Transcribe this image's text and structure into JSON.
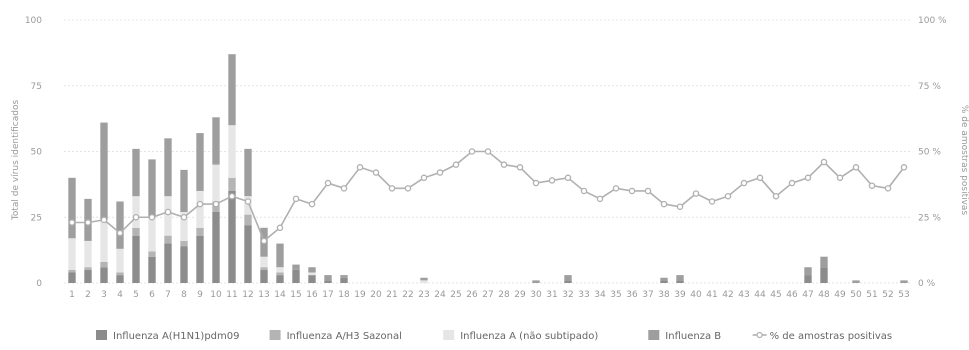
{
  "chart_data": {
    "type": "bar",
    "ylabel": "Total de vírus identificados",
    "y2label": "% de amostras positivas",
    "ylim": [
      0,
      100
    ],
    "y2lim": [
      0,
      100
    ],
    "yticks": [
      "0",
      "25",
      "50",
      "75",
      "100"
    ],
    "y2ticks": [
      "0 %",
      "25 %",
      "50 %",
      "75 %",
      "100 %"
    ],
    "categories": [
      "1",
      "2",
      "3",
      "4",
      "5",
      "6",
      "7",
      "8",
      "9",
      "10",
      "11",
      "12",
      "13",
      "14",
      "15",
      "16",
      "17",
      "18",
      "19",
      "20",
      "21",
      "22",
      "23",
      "24",
      "25",
      "26",
      "27",
      "28",
      "29",
      "30",
      "31",
      "32",
      "33",
      "34",
      "35",
      "36",
      "37",
      "38",
      "39",
      "40",
      "41",
      "42",
      "43",
      "44",
      "45",
      "46",
      "47",
      "48",
      "49",
      "50",
      "51",
      "52",
      "53"
    ],
    "series": [
      {
        "name": "Influenza A(H1N1)pdm09",
        "color": "#8c8c8c",
        "kind": "stacked-bar",
        "values": [
          4,
          5,
          6,
          3,
          18,
          10,
          15,
          14,
          18,
          27,
          35,
          22,
          5,
          3,
          5,
          3,
          1,
          2,
          0,
          0,
          0,
          0,
          0,
          0,
          0,
          0,
          0,
          0,
          0,
          0,
          0,
          1,
          0,
          0,
          0,
          0,
          0,
          1,
          1,
          0,
          0,
          0,
          0,
          0,
          0,
          0,
          3,
          6,
          0,
          0,
          0,
          0,
          0
        ]
      },
      {
        "name": "Influenza A/H3 Sazonal",
        "color": "#b4b4b4",
        "kind": "stacked-bar",
        "values": [
          1,
          1,
          2,
          1,
          3,
          2,
          3,
          2,
          3,
          4,
          5,
          4,
          1,
          1,
          0,
          0,
          0,
          0,
          0,
          0,
          0,
          0,
          0,
          0,
          0,
          0,
          0,
          0,
          0,
          0,
          0,
          0,
          0,
          0,
          0,
          0,
          0,
          0,
          0,
          0,
          0,
          0,
          0,
          0,
          0,
          0,
          0,
          0,
          0,
          0,
          0,
          0,
          0
        ]
      },
      {
        "name": "Influenza A (não subtipado)",
        "color": "#e6e6e6",
        "kind": "stacked-bar",
        "values": [
          12,
          10,
          16,
          9,
          12,
          13,
          15,
          11,
          14,
          14,
          20,
          7,
          4,
          2,
          0,
          1,
          0,
          0,
          0,
          0,
          0,
          0,
          1,
          0,
          0,
          0,
          0,
          0,
          0,
          0,
          0,
          0,
          0,
          0,
          0,
          0,
          0,
          0,
          0,
          0,
          0,
          0,
          0,
          0,
          0,
          0,
          0,
          0,
          0,
          0,
          0,
          0,
          0
        ]
      },
      {
        "name": "Influenza B",
        "color": "#9e9e9e",
        "kind": "stacked-bar",
        "values": [
          23,
          16,
          37,
          18,
          18,
          22,
          22,
          16,
          22,
          18,
          27,
          18,
          11,
          9,
          2,
          2,
          2,
          1,
          0,
          0,
          0,
          0,
          1,
          0,
          0,
          0,
          0,
          0,
          0,
          1,
          0,
          2,
          0,
          0,
          0,
          0,
          0,
          1,
          2,
          0,
          0,
          0,
          0,
          0,
          0,
          0,
          3,
          4,
          0,
          1,
          0,
          0,
          1
        ]
      },
      {
        "name": "% de amostras positivas",
        "color": "#b0b0b0",
        "kind": "line",
        "values": [
          23,
          23,
          24,
          19,
          25,
          25,
          27,
          25,
          30,
          30,
          33,
          31,
          16,
          21,
          32,
          30,
          38,
          36,
          44,
          42,
          36,
          36,
          40,
          42,
          45,
          50,
          50,
          45,
          44,
          38,
          39,
          40,
          35,
          32,
          36,
          35,
          35,
          30,
          29,
          34,
          31,
          33,
          38,
          40,
          33,
          38,
          40,
          46,
          40,
          44,
          37,
          36,
          44
        ]
      }
    ],
    "legend_position": "bottom"
  }
}
